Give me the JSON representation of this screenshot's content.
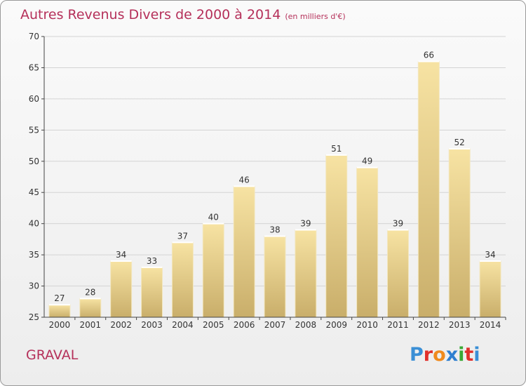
{
  "header": {
    "title": "Autres Revenus Divers de 2000 à 2014",
    "subtitle": "(en milliers d'€)"
  },
  "footer": {
    "commune": "GRAVAL",
    "logo": {
      "letters": [
        "P",
        "r",
        "o",
        "x",
        "i",
        "t",
        "i"
      ],
      "colors": [
        "#3a8fd6",
        "#e0302b",
        "#f08a1c",
        "#2f7fd0",
        "#39a935",
        "#e0302b",
        "#3a8fd6"
      ]
    }
  },
  "colors": {
    "bar_light": "#f7e3a3",
    "bar_dark": "#c9ae6a",
    "grid": "#d4d4d4",
    "axis": "#444444",
    "text": "#333333",
    "accent": "#b5305a"
  },
  "chart_data": {
    "type": "bar",
    "categories": [
      "2000",
      "2001",
      "2002",
      "2003",
      "2004",
      "2005",
      "2006",
      "2007",
      "2008",
      "2009",
      "2010",
      "2011",
      "2012",
      "2013",
      "2014"
    ],
    "values": [
      27,
      28,
      34,
      33,
      37,
      40,
      46,
      38,
      39,
      51,
      49,
      39,
      66,
      52,
      34
    ],
    "data_labels": [
      "27",
      "28",
      "34",
      "33",
      "37",
      "40",
      "46",
      "38",
      "39",
      "51",
      "49",
      "39",
      "66",
      "52",
      "34"
    ],
    "ylim": [
      25,
      70
    ],
    "yticks": [
      25,
      30,
      35,
      40,
      45,
      50,
      55,
      60,
      65,
      70
    ],
    "ytick_labels": [
      "25",
      "30",
      "35",
      "40",
      "45",
      "50",
      "55",
      "60",
      "65",
      "70"
    ],
    "grid": true,
    "title": "Autres Revenus Divers de 2000 à 2014",
    "xlabel": "",
    "ylabel": ""
  }
}
